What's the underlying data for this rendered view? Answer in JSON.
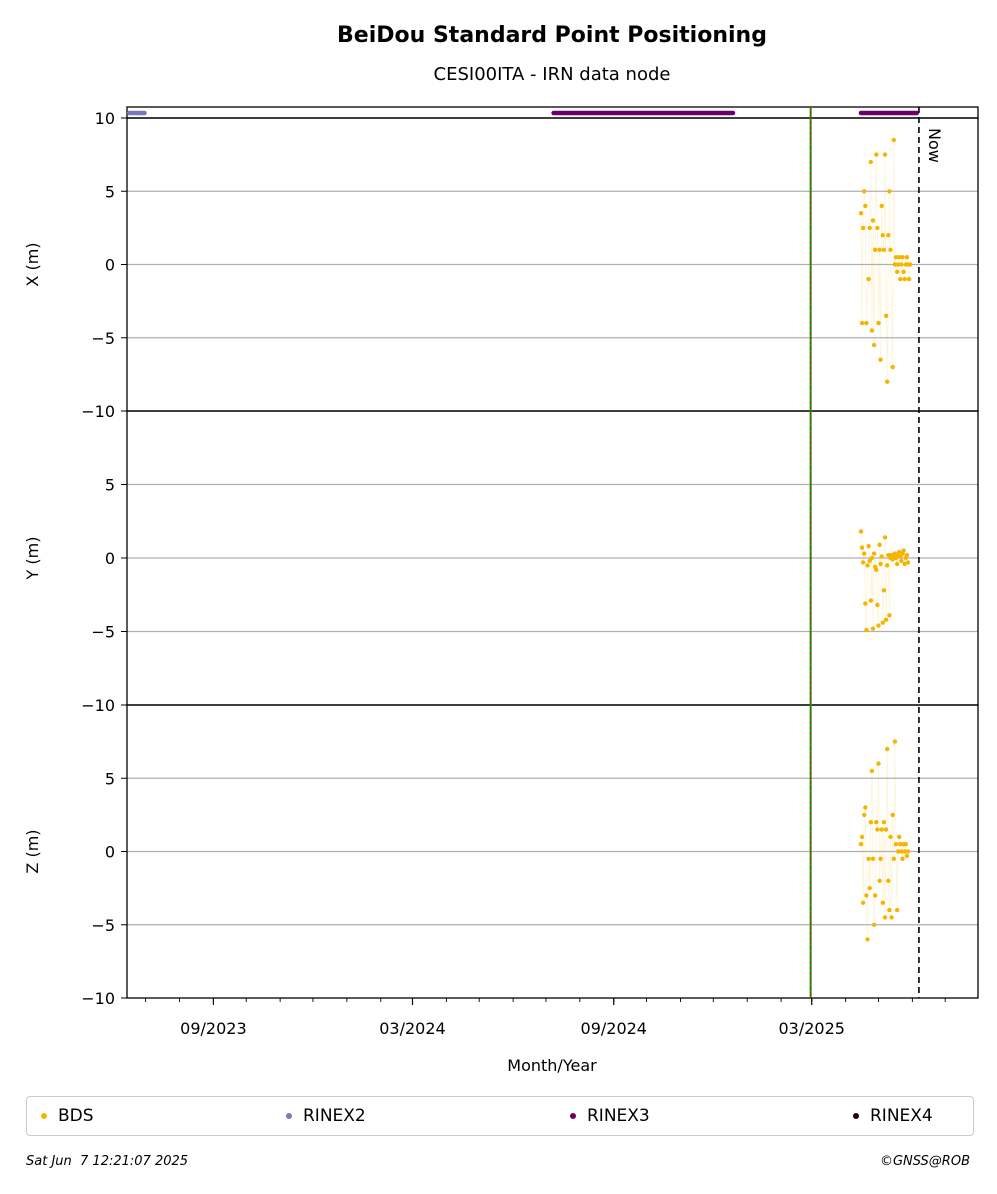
{
  "chart_data": {
    "type": "scatter",
    "title": "BeiDou Standard Point Positioning",
    "subtitle": "CESI00ITA - IRN data node",
    "xlabel": "Month/Year",
    "x_range": [
      "2023-06-14",
      "2025-07-31"
    ],
    "x_ticks": [
      {
        "date": "2023-09-01",
        "label": "09/2023"
      },
      {
        "date": "2024-03-01",
        "label": "03/2024"
      },
      {
        "date": "2024-09-01",
        "label": "09/2024"
      },
      {
        "date": "2025-03-01",
        "label": "03/2025"
      }
    ],
    "panels": [
      {
        "ylabel": "X (m)",
        "ylim": [
          -10,
          10
        ],
        "yticks": [
          10,
          5,
          0,
          -5,
          -10
        ],
        "tick_labels": [
          "10",
          "5",
          "0",
          "−5",
          "−10"
        ],
        "points": [
          [
            "2025-04-15",
            3.5
          ],
          [
            "2025-04-16",
            -4.0
          ],
          [
            "2025-04-17",
            2.5
          ],
          [
            "2025-04-18",
            5.0
          ],
          [
            "2025-04-19",
            4.0
          ],
          [
            "2025-04-20",
            -4.0
          ],
          [
            "2025-04-22",
            -1.0
          ],
          [
            "2025-04-23",
            2.5
          ],
          [
            "2025-04-24",
            7.0
          ],
          [
            "2025-04-25",
            -4.5
          ],
          [
            "2025-04-26",
            3.0
          ],
          [
            "2025-04-27",
            -5.5
          ],
          [
            "2025-04-28",
            1.0
          ],
          [
            "2025-04-29",
            7.5
          ],
          [
            "2025-04-30",
            2.5
          ],
          [
            "2025-05-01",
            -4.0
          ],
          [
            "2025-05-02",
            1.0
          ],
          [
            "2025-05-03",
            -6.5
          ],
          [
            "2025-05-04",
            4.0
          ],
          [
            "2025-05-05",
            2.0
          ],
          [
            "2025-05-06",
            1.0
          ],
          [
            "2025-05-07",
            7.5
          ],
          [
            "2025-05-08",
            -3.5
          ],
          [
            "2025-05-09",
            -8.0
          ],
          [
            "2025-05-10",
            2.0
          ],
          [
            "2025-05-11",
            5.0
          ],
          [
            "2025-05-12",
            1.0
          ],
          [
            "2025-05-14",
            -7.0
          ],
          [
            "2025-05-15",
            8.5
          ],
          [
            "2025-05-16",
            0.0
          ],
          [
            "2025-05-17",
            0.5
          ],
          [
            "2025-05-18",
            -0.5
          ],
          [
            "2025-05-19",
            0.0
          ],
          [
            "2025-05-20",
            0.5
          ],
          [
            "2025-05-21",
            -1.0
          ],
          [
            "2025-05-22",
            0.0
          ],
          [
            "2025-05-23",
            0.5
          ],
          [
            "2025-05-24",
            -0.5
          ],
          [
            "2025-05-25",
            -1.0
          ],
          [
            "2025-05-26",
            0.0
          ],
          [
            "2025-05-27",
            0.5
          ],
          [
            "2025-05-28",
            0.0
          ],
          [
            "2025-05-29",
            -1.0
          ],
          [
            "2025-05-30",
            0.0
          ]
        ]
      },
      {
        "ylabel": "Y (m)",
        "ylim": [
          -10,
          10
        ],
        "yticks": [
          5,
          0,
          -5,
          -10
        ],
        "tick_labels": [
          "5",
          "0",
          "−5",
          "−10"
        ],
        "points": [
          [
            "2025-04-15",
            1.8
          ],
          [
            "2025-04-16",
            0.7
          ],
          [
            "2025-04-17",
            -0.3
          ],
          [
            "2025-04-18",
            0.3
          ],
          [
            "2025-04-19",
            -3.1
          ],
          [
            "2025-04-20",
            -4.9
          ],
          [
            "2025-04-21",
            -0.5
          ],
          [
            "2025-04-22",
            0.8
          ],
          [
            "2025-04-23",
            -0.2
          ],
          [
            "2025-04-24",
            -2.9
          ],
          [
            "2025-04-25",
            0.0
          ],
          [
            "2025-04-26",
            -4.8
          ],
          [
            "2025-04-27",
            0.3
          ],
          [
            "2025-04-28",
            -0.6
          ],
          [
            "2025-04-29",
            -0.8
          ],
          [
            "2025-04-30",
            -3.2
          ],
          [
            "2025-05-01",
            -4.6
          ],
          [
            "2025-05-02",
            0.9
          ],
          [
            "2025-05-03",
            -0.4
          ],
          [
            "2025-05-04",
            0.1
          ],
          [
            "2025-05-05",
            -4.4
          ],
          [
            "2025-05-06",
            -2.2
          ],
          [
            "2025-05-07",
            1.4
          ],
          [
            "2025-05-08",
            -4.2
          ],
          [
            "2025-05-09",
            -0.5
          ],
          [
            "2025-05-10",
            0.2
          ],
          [
            "2025-05-11",
            -3.9
          ],
          [
            "2025-05-12",
            0.0
          ],
          [
            "2025-05-13",
            0.2
          ],
          [
            "2025-05-14",
            -0.1
          ],
          [
            "2025-05-15",
            0.1
          ],
          [
            "2025-05-16",
            0.3
          ],
          [
            "2025-05-17",
            0.0
          ],
          [
            "2025-05-18",
            -0.4
          ],
          [
            "2025-05-19",
            0.2
          ],
          [
            "2025-05-20",
            0.4
          ],
          [
            "2025-05-21",
            0.1
          ],
          [
            "2025-05-22",
            -0.2
          ],
          [
            "2025-05-23",
            0.3
          ],
          [
            "2025-05-24",
            0.5
          ],
          [
            "2025-05-25",
            -0.4
          ],
          [
            "2025-05-26",
            0.0
          ],
          [
            "2025-05-27",
            0.2
          ],
          [
            "2025-05-28",
            -0.3
          ]
        ]
      },
      {
        "ylabel": "Z (m)",
        "ylim": [
          -10,
          10
        ],
        "yticks": [
          5,
          0,
          -5,
          -10
        ],
        "tick_labels": [
          "5",
          "0",
          "−5",
          "−10"
        ],
        "points": [
          [
            "2025-04-15",
            0.5
          ],
          [
            "2025-04-16",
            1.0
          ],
          [
            "2025-04-17",
            -3.5
          ],
          [
            "2025-04-18",
            2.5
          ],
          [
            "2025-04-19",
            3.0
          ],
          [
            "2025-04-20",
            -3.0
          ],
          [
            "2025-04-21",
            -6.0
          ],
          [
            "2025-04-22",
            -0.5
          ],
          [
            "2025-04-23",
            -2.5
          ],
          [
            "2025-04-24",
            2.0
          ],
          [
            "2025-04-25",
            5.5
          ],
          [
            "2025-04-26",
            -0.5
          ],
          [
            "2025-04-27",
            -5.0
          ],
          [
            "2025-04-28",
            -3.0
          ],
          [
            "2025-04-29",
            2.0
          ],
          [
            "2025-04-30",
            1.5
          ],
          [
            "2025-05-01",
            6.0
          ],
          [
            "2025-05-02",
            -2.0
          ],
          [
            "2025-05-03",
            -0.5
          ],
          [
            "2025-05-04",
            1.5
          ],
          [
            "2025-05-05",
            -3.5
          ],
          [
            "2025-05-06",
            2.0
          ],
          [
            "2025-05-07",
            -4.5
          ],
          [
            "2025-05-08",
            1.5
          ],
          [
            "2025-05-09",
            7.0
          ],
          [
            "2025-05-10",
            -2.0
          ],
          [
            "2025-05-11",
            -4.0
          ],
          [
            "2025-05-12",
            1.0
          ],
          [
            "2025-05-13",
            -4.5
          ],
          [
            "2025-05-14",
            2.5
          ],
          [
            "2025-05-15",
            -0.5
          ],
          [
            "2025-05-16",
            7.5
          ],
          [
            "2025-05-17",
            0.5
          ],
          [
            "2025-05-18",
            -4.0
          ],
          [
            "2025-05-19",
            0.0
          ],
          [
            "2025-05-20",
            1.0
          ],
          [
            "2025-05-21",
            0.5
          ],
          [
            "2025-05-22",
            0.0
          ],
          [
            "2025-05-23",
            -0.5
          ],
          [
            "2025-05-24",
            0.5
          ],
          [
            "2025-05-25",
            0.0
          ],
          [
            "2025-05-26",
            0.5
          ],
          [
            "2025-05-27",
            -0.3
          ],
          [
            "2025-05-28",
            0.0
          ]
        ]
      }
    ],
    "availability": [
      {
        "name": "RINEX2",
        "color": "#7a7ab8",
        "start": "2023-06-16",
        "end": "2023-06-30"
      },
      {
        "name": "RINEX3",
        "color": "#6a0068",
        "start": "2024-07-08",
        "end": "2024-12-19"
      },
      {
        "name": "RINEX3",
        "color": "#6a0068",
        "start": "2025-04-15",
        "end": "2025-06-05"
      }
    ],
    "markers": {
      "start_line_date": "2025-02-28",
      "now_date": "2025-06-07",
      "now_label": "Now"
    },
    "grid": "horizontal",
    "legend_placement": "bottom",
    "legend": [
      {
        "name": "BDS",
        "color": "#f5b400"
      },
      {
        "name": "RINEX2",
        "color": "#7a7ab8"
      },
      {
        "name": "RINEX3",
        "color": "#6a0068"
      },
      {
        "name": "RINEX4",
        "color": "#200018"
      }
    ],
    "series_color": "#f5b400"
  },
  "footer": {
    "timestamp": "Sat Jun  7 12:21:07 2025",
    "credit": "©GNSS@ROB"
  }
}
